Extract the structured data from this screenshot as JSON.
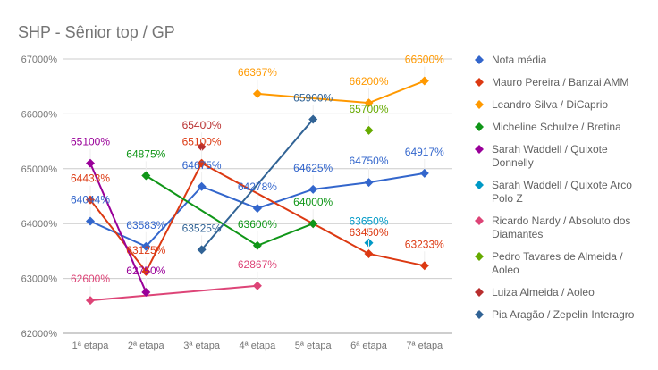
{
  "chart_data": {
    "type": "line",
    "title": "SHP -  Sênior top / GP",
    "categories": [
      "1ª etapa",
      "2ª etapa",
      "3ª etapa",
      "4ª etapa",
      "5ª etapa",
      "6ª etapa",
      "7ª etapa"
    ],
    "ylim": [
      62000,
      67000
    ],
    "yticks": [
      "62000%",
      "63000%",
      "64000%",
      "65000%",
      "66000%",
      "67000%"
    ],
    "ytick_values": [
      62000,
      63000,
      64000,
      65000,
      66000,
      67000
    ],
    "grid": true,
    "legend_position": "right",
    "point_shape": "diamond",
    "series": [
      {
        "name": "Nota média",
        "color": "#3366cc",
        "values": [
          64044,
          63583,
          64675,
          64278,
          64625,
          64750,
          64917
        ],
        "labels": [
          "64044%",
          "63583%",
          "64675%",
          "64278%",
          "64625%",
          "64750%",
          "64917%"
        ]
      },
      {
        "name": "Mauro Pereira / Banzai AMM",
        "color": "#dc3912",
        "values": [
          64433,
          63125,
          65100,
          null,
          64000,
          63450,
          63233
        ],
        "labels": [
          "64433%",
          "63125%",
          "65100%",
          null,
          null,
          "63450%",
          "63233%"
        ]
      },
      {
        "name": "Leandro Silva / DiCaprio",
        "color": "#ff9900",
        "values": [
          null,
          null,
          null,
          66367,
          null,
          66200,
          66600
        ],
        "labels": [
          null,
          null,
          null,
          "66367%",
          null,
          "66200%",
          "66600%"
        ]
      },
      {
        "name": "Micheline Schulze / Bretina",
        "color": "#109618",
        "values": [
          null,
          64875,
          null,
          63600,
          64000,
          null,
          null
        ],
        "labels": [
          null,
          "64875%",
          null,
          "63600%",
          "64000%",
          null,
          null
        ]
      },
      {
        "name": "Sarah Waddell / Quixote Donnelly",
        "color": "#990099",
        "values": [
          65100,
          62750,
          null,
          null,
          null,
          null,
          null
        ],
        "labels": [
          "65100%",
          "62750%",
          null,
          null,
          null,
          null,
          null
        ]
      },
      {
        "name": "Sarah Waddell / Quixote Arco Polo Z",
        "color": "#0099c6",
        "values": [
          null,
          null,
          null,
          null,
          null,
          63650,
          null
        ],
        "labels": [
          null,
          null,
          null,
          null,
          null,
          "63650%",
          null
        ]
      },
      {
        "name": "Ricardo Nardy / Absoluto dos Diamantes",
        "color": "#dd4477",
        "values": [
          62600,
          null,
          null,
          62867,
          null,
          null,
          null
        ],
        "labels": [
          "62600%",
          null,
          null,
          "62867%",
          null,
          null,
          null
        ]
      },
      {
        "name": "Pedro Tavares de Almeida / Aoleo",
        "color": "#66aa00",
        "values": [
          null,
          null,
          null,
          null,
          null,
          65700,
          null
        ],
        "labels": [
          null,
          null,
          null,
          null,
          null,
          "65700%",
          null
        ]
      },
      {
        "name": "Luiza Almeida / Aoleo",
        "color": "#b82e2e",
        "values": [
          null,
          null,
          65400,
          null,
          null,
          null,
          null
        ],
        "labels": [
          null,
          null,
          "65400%",
          null,
          null,
          null,
          null
        ]
      },
      {
        "name": "Pia Aragão / Zepelin Interagro",
        "color": "#316395",
        "values": [
          null,
          null,
          63525,
          null,
          65900,
          null,
          null
        ],
        "labels": [
          null,
          null,
          "63525%",
          null,
          "65900%",
          null,
          null
        ]
      }
    ],
    "legend_lines": [
      [
        "Nota média"
      ],
      [
        "Mauro Pereira / Banzai AMM"
      ],
      [
        "Leandro Silva / DiCaprio"
      ],
      [
        "Micheline Schulze / Bretina"
      ],
      [
        "Sarah Waddell / Quixote",
        "Donnelly"
      ],
      [
        "Sarah Waddell / Quixote Arco",
        "Polo Z"
      ],
      [
        "Ricardo Nardy / Absoluto dos",
        "Diamantes"
      ],
      [
        "Pedro Tavares de Almeida /",
        "Aoleo"
      ],
      [
        "Luiza Almeida / Aoleo"
      ],
      [
        "Pia Aragão / Zepelin Interagro"
      ]
    ]
  }
}
